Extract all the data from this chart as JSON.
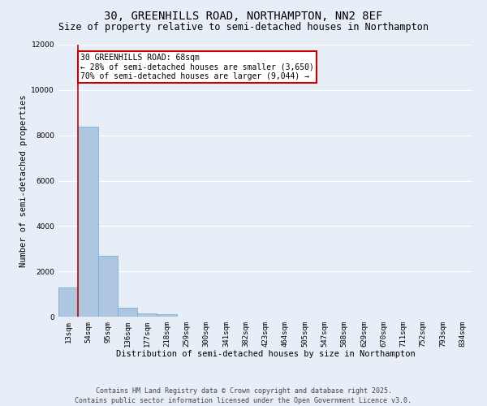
{
  "title": "30, GREENHILLS ROAD, NORTHAMPTON, NN2 8EF",
  "subtitle": "Size of property relative to semi-detached houses in Northampton",
  "xlabel": "Distribution of semi-detached houses by size in Northampton",
  "ylabel": "Number of semi-detached properties",
  "bar_labels": [
    "13sqm",
    "54sqm",
    "95sqm",
    "136sqm",
    "177sqm",
    "218sqm",
    "259sqm",
    "300sqm",
    "341sqm",
    "382sqm",
    "423sqm",
    "464sqm",
    "505sqm",
    "547sqm",
    "588sqm",
    "629sqm",
    "670sqm",
    "711sqm",
    "752sqm",
    "793sqm",
    "834sqm"
  ],
  "bar_values": [
    1300,
    8400,
    2700,
    380,
    130,
    110,
    0,
    0,
    0,
    0,
    0,
    0,
    0,
    0,
    0,
    0,
    0,
    0,
    0,
    0,
    0
  ],
  "bar_color": "#aec6e0",
  "bar_edge_color": "#7aafd4",
  "ylim": [
    0,
    12000
  ],
  "yticks": [
    0,
    2000,
    4000,
    6000,
    8000,
    10000,
    12000
  ],
  "property_line_x": 0.5,
  "annotation_title": "30 GREENHILLS ROAD: 68sqm",
  "annotation_line1": "← 28% of semi-detached houses are smaller (3,650)",
  "annotation_line2": "70% of semi-detached houses are larger (9,044) →",
  "annotation_box_facecolor": "#ffffff",
  "annotation_box_edgecolor": "#cc0000",
  "red_line_color": "#cc0000",
  "footer_line1": "Contains HM Land Registry data © Crown copyright and database right 2025.",
  "footer_line2": "Contains public sector information licensed under the Open Government Licence v3.0.",
  "bg_color": "#e8eef7",
  "plot_bg_color": "#e8eef7",
  "grid_color": "#ffffff",
  "title_fontsize": 10,
  "subtitle_fontsize": 8.5,
  "axis_label_fontsize": 7.5,
  "tick_fontsize": 6.5,
  "annotation_fontsize": 7,
  "footer_fontsize": 6
}
